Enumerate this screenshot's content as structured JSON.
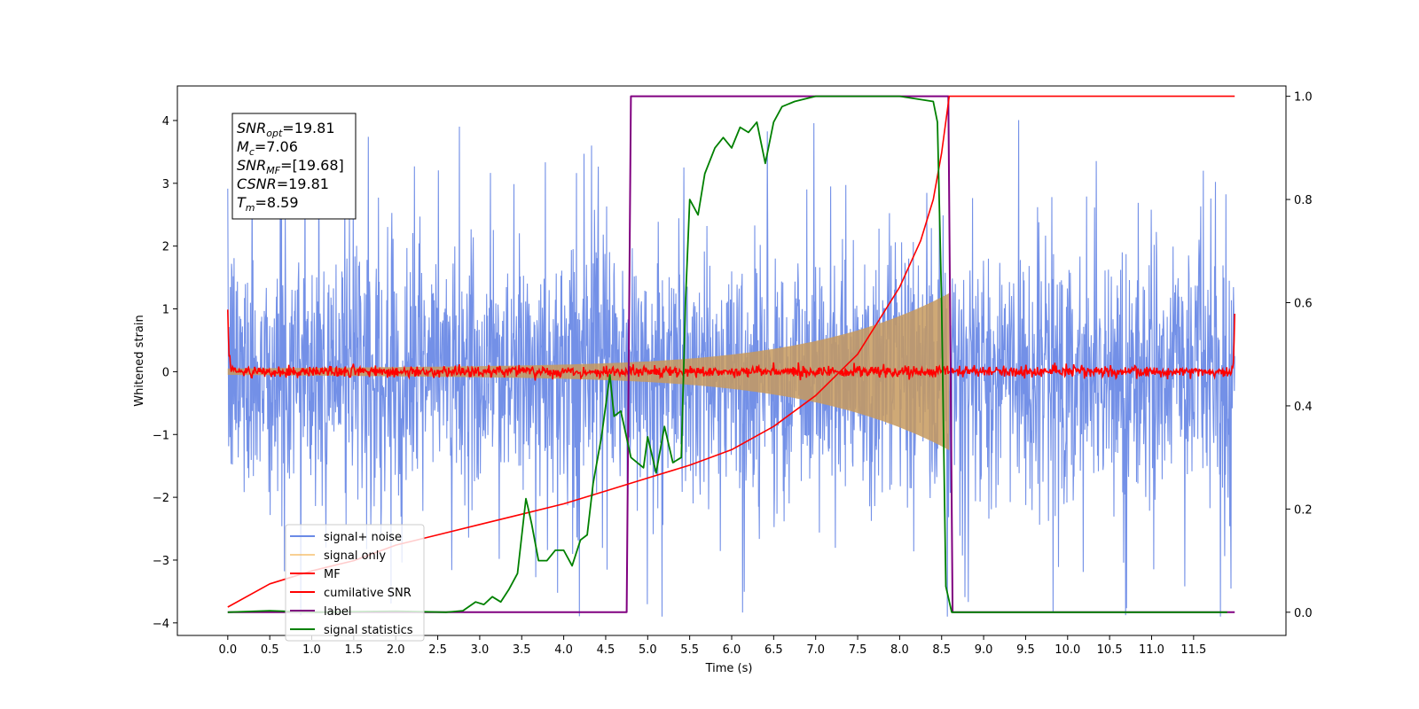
{
  "chart_data": {
    "type": "line",
    "xlabel": "Time (s)",
    "ylabel": "Whitened strain",
    "xlim": [
      -0.6,
      12.6
    ],
    "ylim": [
      -4.2,
      4.55
    ],
    "y2lim": [
      -0.045,
      1.02
    ],
    "x_ticks": [
      0.0,
      0.5,
      1.0,
      1.5,
      2.0,
      2.5,
      3.0,
      3.5,
      4.0,
      4.5,
      5.0,
      5.5,
      6.0,
      6.5,
      7.0,
      7.5,
      8.0,
      8.5,
      9.0,
      9.5,
      10.0,
      10.5,
      11.0,
      11.5
    ],
    "x_tick_labels": [
      "0.0",
      "0.5",
      "1.0",
      "1.5",
      "2.0",
      "2.5",
      "3.0",
      "3.5",
      "4.0",
      "4.5",
      "5.0",
      "5.5",
      "6.0",
      "6.5",
      "7.0",
      "7.5",
      "8.0",
      "8.5",
      "9.0",
      "9.5",
      "10.0",
      "10.5",
      "11.0",
      "11.5"
    ],
    "y_ticks": [
      -4,
      -3,
      -2,
      -1,
      0,
      1,
      2,
      3,
      4
    ],
    "y_tick_labels": [
      "−4",
      "−3",
      "−2",
      "−1",
      "0",
      "1",
      "2",
      "3",
      "4"
    ],
    "y2_ticks": [
      0.0,
      0.2,
      0.4,
      0.6,
      0.8,
      1.0
    ],
    "y2_tick_labels": [
      "0.0",
      "0.2",
      "0.4",
      "0.6",
      "0.8",
      "1.0"
    ],
    "grid": false,
    "legend_position": "bottom-left",
    "annotation": {
      "lines": [
        {
          "base": "SNR",
          "sub": "opt",
          "rest": "=19.81"
        },
        {
          "base": "M",
          "sub": "c",
          "rest": "=7.06"
        },
        {
          "base": "SNR",
          "sub": "MF",
          "rest": "=[19.68]"
        },
        {
          "base": "CSNR",
          "sub": "",
          "rest": "=19.81"
        },
        {
          "base": "T",
          "sub": "m",
          "rest": "=8.59"
        }
      ]
    },
    "series": [
      {
        "name": "signal+ noise",
        "color": "#6b8ae6",
        "axis": "left",
        "kind": "noise-band",
        "description_values": {
          "x_start": 0.0,
          "x_end": 11.99,
          "typical_abs_max": 2.2,
          "peak_max": 4.18,
          "peak_min": -3.9
        }
      },
      {
        "name": "signal only",
        "color": "#f5b24c",
        "axis": "left",
        "kind": "chirp",
        "description_values": {
          "x_start": 0.0,
          "x_end": 8.59,
          "amp_start": 0.05,
          "amp_end": 1.15
        }
      },
      {
        "name": "MF",
        "color": "#ff0000",
        "axis": "left",
        "kind": "noise-small",
        "description_values": {
          "x_start": 0.0,
          "x_end": 11.99,
          "edge_peak": 1.0,
          "noise_amp": 0.1
        }
      },
      {
        "name": "cumilative SNR",
        "color": "#ff0000",
        "axis": "right",
        "x": [
          0.0,
          0.5,
          1.0,
          1.5,
          2.0,
          2.5,
          3.0,
          3.5,
          4.0,
          4.5,
          5.0,
          5.5,
          6.0,
          6.5,
          7.0,
          7.5,
          8.0,
          8.25,
          8.4,
          8.5,
          8.59,
          11.99
        ],
        "y": [
          0.01,
          0.055,
          0.08,
          0.1,
          0.13,
          0.15,
          0.17,
          0.19,
          0.21,
          0.235,
          0.26,
          0.285,
          0.315,
          0.36,
          0.42,
          0.5,
          0.63,
          0.72,
          0.8,
          0.89,
          1.0,
          1.0
        ]
      },
      {
        "name": "label",
        "color": "#800080",
        "axis": "right",
        "x": [
          0.0,
          4.75,
          4.8,
          8.58,
          8.63,
          11.99
        ],
        "y": [
          0.0,
          0.0,
          1.0,
          1.0,
          0.0,
          0.0
        ]
      },
      {
        "name": "signal statistics",
        "color": "#008000",
        "axis": "right",
        "x": [
          0.0,
          0.5,
          1.0,
          2.0,
          2.6,
          2.8,
          2.95,
          3.05,
          3.15,
          3.25,
          3.35,
          3.45,
          3.55,
          3.58,
          3.62,
          3.7,
          3.8,
          3.9,
          4.0,
          4.1,
          4.2,
          4.28,
          4.35,
          4.45,
          4.55,
          4.6,
          4.68,
          4.8,
          4.95,
          5.0,
          5.1,
          5.2,
          5.3,
          5.4,
          5.45,
          5.5,
          5.6,
          5.68,
          5.8,
          5.9,
          6.0,
          6.1,
          6.2,
          6.3,
          6.4,
          6.5,
          6.6,
          6.75,
          7.0,
          7.5,
          8.0,
          8.4,
          8.45,
          8.5,
          8.55,
          8.62,
          11.9
        ],
        "y": [
          0.0,
          0.003,
          0.0,
          0.002,
          0.0,
          0.003,
          0.02,
          0.015,
          0.03,
          0.02,
          0.045,
          0.075,
          0.22,
          0.2,
          0.17,
          0.1,
          0.1,
          0.12,
          0.12,
          0.09,
          0.14,
          0.15,
          0.25,
          0.34,
          0.46,
          0.38,
          0.39,
          0.3,
          0.28,
          0.34,
          0.27,
          0.36,
          0.29,
          0.3,
          0.6,
          0.8,
          0.77,
          0.85,
          0.9,
          0.92,
          0.9,
          0.94,
          0.93,
          0.95,
          0.87,
          0.95,
          0.98,
          0.99,
          1.0,
          1.0,
          1.0,
          0.99,
          0.95,
          0.6,
          0.05,
          0.0,
          0.0
        ]
      }
    ]
  }
}
